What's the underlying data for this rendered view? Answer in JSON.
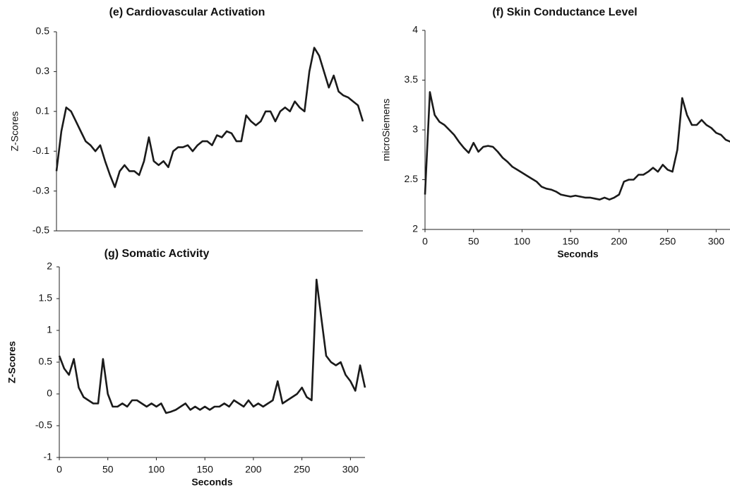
{
  "chart_data": [
    {
      "type": "line",
      "title": "(e) Cardiovascular Activation",
      "ylabel": "Z-Scores",
      "color": "#1a1a1a",
      "x": [
        0,
        5,
        10,
        15,
        20,
        25,
        30,
        35,
        40,
        45,
        50,
        55,
        60,
        65,
        70,
        75,
        80,
        85,
        90,
        95,
        100,
        105,
        110,
        115,
        120,
        125,
        130,
        135,
        140,
        145,
        150,
        155,
        160,
        165,
        170,
        175,
        180,
        185,
        190,
        195,
        200,
        205,
        210,
        215,
        220,
        225,
        230,
        235,
        240,
        245,
        250,
        255,
        260,
        265,
        270,
        275,
        280,
        285,
        290,
        295,
        300,
        305,
        310,
        315
      ],
      "values": [
        -0.2,
        0.0,
        0.12,
        0.1,
        0.05,
        0.0,
        -0.05,
        -0.07,
        -0.1,
        -0.07,
        -0.15,
        -0.22,
        -0.28,
        -0.2,
        -0.17,
        -0.2,
        -0.2,
        -0.22,
        -0.15,
        -0.03,
        -0.15,
        -0.17,
        -0.15,
        -0.18,
        -0.1,
        -0.08,
        -0.08,
        -0.07,
        -0.1,
        -0.07,
        -0.05,
        -0.05,
        -0.07,
        -0.02,
        -0.03,
        0.0,
        -0.01,
        -0.05,
        -0.05,
        0.08,
        0.05,
        0.03,
        0.05,
        0.1,
        0.1,
        0.05,
        0.1,
        0.12,
        0.1,
        0.15,
        0.12,
        0.1,
        0.3,
        0.42,
        0.38,
        0.3,
        0.22,
        0.28,
        0.2,
        0.18,
        0.17,
        0.15,
        0.13,
        0.05
      ],
      "xlim": [
        0,
        315
      ],
      "ylim": [
        -0.5,
        0.5
      ],
      "yticks": [
        -0.5,
        -0.3,
        -0.1,
        0.1,
        0.3,
        0.5
      ]
    },
    {
      "type": "line",
      "title": "(f) Skin Conductance Level",
      "xlabel": "Seconds",
      "ylabel": "microSiemens",
      "color": "#1a1a1a",
      "x": [
        0,
        5,
        10,
        15,
        20,
        25,
        30,
        35,
        40,
        45,
        50,
        55,
        60,
        65,
        70,
        75,
        80,
        85,
        90,
        95,
        100,
        105,
        110,
        115,
        120,
        125,
        130,
        135,
        140,
        145,
        150,
        155,
        160,
        165,
        170,
        175,
        180,
        185,
        190,
        195,
        200,
        205,
        210,
        215,
        220,
        225,
        230,
        235,
        240,
        245,
        250,
        255,
        260,
        265,
        270,
        275,
        280,
        285,
        290,
        295,
        300,
        305,
        310,
        315
      ],
      "values": [
        2.35,
        3.38,
        3.15,
        3.08,
        3.05,
        3.0,
        2.95,
        2.88,
        2.82,
        2.77,
        2.87,
        2.78,
        2.83,
        2.84,
        2.83,
        2.78,
        2.72,
        2.68,
        2.63,
        2.6,
        2.57,
        2.54,
        2.51,
        2.48,
        2.43,
        2.41,
        2.4,
        2.38,
        2.35,
        2.34,
        2.33,
        2.34,
        2.33,
        2.32,
        2.32,
        2.31,
        2.3,
        2.32,
        2.3,
        2.32,
        2.35,
        2.48,
        2.5,
        2.5,
        2.55,
        2.55,
        2.58,
        2.62,
        2.58,
        2.65,
        2.6,
        2.58,
        2.8,
        3.32,
        3.15,
        3.05,
        3.05,
        3.1,
        3.05,
        3.02,
        2.97,
        2.95,
        2.9,
        2.88
      ],
      "xlim": [
        0,
        315
      ],
      "ylim": [
        2,
        4
      ],
      "xticks": [
        0,
        50,
        100,
        150,
        200,
        250,
        300
      ],
      "yticks": [
        2,
        2.5,
        3,
        3.5,
        4
      ]
    },
    {
      "type": "line",
      "title": "(g) Somatic Activity",
      "xlabel": "Seconds",
      "ylabel": "Z-Scores",
      "color": "#1a1a1a",
      "x": [
        0,
        5,
        10,
        15,
        20,
        25,
        30,
        35,
        40,
        45,
        50,
        55,
        60,
        65,
        70,
        75,
        80,
        85,
        90,
        95,
        100,
        105,
        110,
        115,
        120,
        125,
        130,
        135,
        140,
        145,
        150,
        155,
        160,
        165,
        170,
        175,
        180,
        185,
        190,
        195,
        200,
        205,
        210,
        215,
        220,
        225,
        230,
        235,
        240,
        245,
        250,
        255,
        260,
        265,
        270,
        275,
        280,
        285,
        290,
        295,
        300,
        305,
        310,
        315
      ],
      "values": [
        0.6,
        0.4,
        0.3,
        0.55,
        0.1,
        -0.05,
        -0.1,
        -0.15,
        -0.15,
        0.55,
        0.0,
        -0.2,
        -0.2,
        -0.15,
        -0.2,
        -0.1,
        -0.1,
        -0.15,
        -0.2,
        -0.15,
        -0.2,
        -0.15,
        -0.3,
        -0.28,
        -0.25,
        -0.2,
        -0.15,
        -0.25,
        -0.2,
        -0.25,
        -0.2,
        -0.25,
        -0.2,
        -0.2,
        -0.15,
        -0.2,
        -0.1,
        -0.15,
        -0.2,
        -0.1,
        -0.2,
        -0.15,
        -0.2,
        -0.15,
        -0.1,
        0.2,
        -0.15,
        -0.1,
        -0.05,
        0.0,
        0.1,
        -0.05,
        -0.1,
        1.8,
        1.2,
        0.6,
        0.5,
        0.45,
        0.5,
        0.3,
        0.2,
        0.05,
        0.45,
        0.1
      ],
      "xlim": [
        0,
        315
      ],
      "ylim": [
        -1,
        2
      ],
      "xticks": [
        0,
        50,
        100,
        150,
        200,
        250,
        300
      ],
      "yticks": [
        -1,
        -0.5,
        0,
        0.5,
        1,
        1.5,
        2
      ]
    }
  ]
}
